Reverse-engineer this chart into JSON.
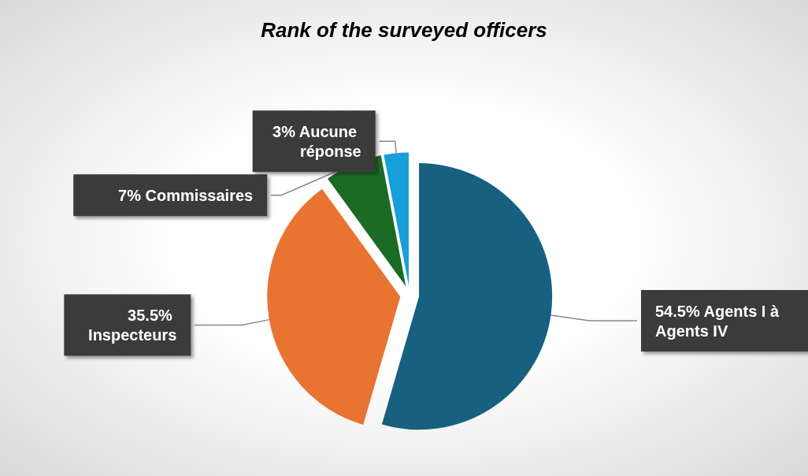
{
  "chart_data": {
    "type": "pie",
    "title": "Rank of the surveyed officers",
    "categories": [
      "Agents I à Agents IV",
      "Inspecteurs",
      "Commissaires",
      "Aucune réponse"
    ],
    "values": [
      54.5,
      35.5,
      7,
      3
    ],
    "colors": [
      "#17607f",
      "#e97331",
      "#1c6b24",
      "#169fd8"
    ],
    "value_labels": [
      "54.5%",
      "35.5%",
      "7%",
      "3%"
    ],
    "legend": false
  }
}
